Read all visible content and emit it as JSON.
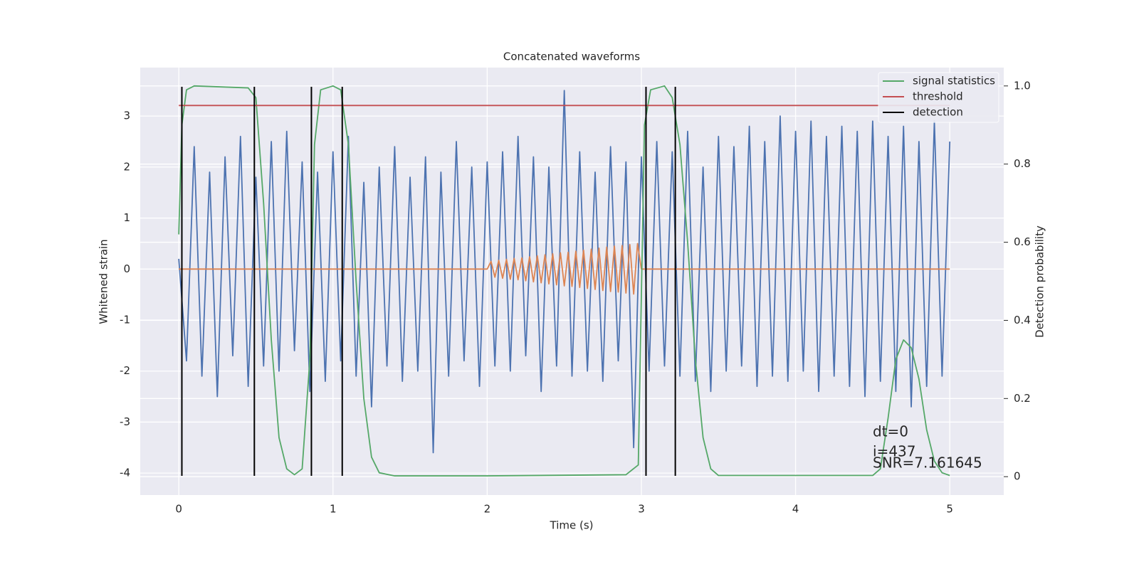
{
  "chart_data": {
    "type": "line",
    "title": "Concatenated waveforms",
    "xlabel": "Time (s)",
    "ylabel": "Whitened strain",
    "y2label": "Detection probability",
    "xlim": [
      -0.25,
      5.35
    ],
    "ylim": [
      -4.43,
      3.95
    ],
    "y2lim": [
      -0.047,
      1.047
    ],
    "xticks": [
      0,
      1,
      2,
      3,
      4,
      5
    ],
    "yticks": [
      -4,
      -3,
      -2,
      -1,
      0,
      1,
      2,
      3
    ],
    "y2ticks": [
      0.0,
      0.2,
      0.4,
      0.6,
      0.8,
      {
        "value": 1.0,
        "label": "1.0"
      }
    ],
    "grid": true,
    "legend": "upper right",
    "annotations": [
      "dt=0",
      "i=437",
      "SNR=7.161645"
    ],
    "series": [
      {
        "color": "#4c72b0",
        "x": [
          0,
          0.05,
          0.1,
          0.15,
          0.2,
          0.25,
          0.3,
          0.35,
          0.4,
          0.45,
          0.5,
          0.55,
          0.6,
          0.65,
          0.7,
          0.75,
          0.8,
          0.85,
          0.9,
          0.95,
          1,
          1.05,
          1.1,
          1.15,
          1.2,
          1.25,
          1.3,
          1.35,
          1.4,
          1.45,
          1.5,
          1.55,
          1.6,
          1.65,
          1.7,
          1.75,
          1.8,
          1.85,
          1.9,
          1.95,
          2,
          2.05,
          2.1,
          2.15,
          2.2,
          2.25,
          2.3,
          2.35,
          2.4,
          2.45,
          2.5,
          2.55,
          2.6,
          2.65,
          2.7,
          2.75,
          2.8,
          2.85,
          2.9,
          2.95,
          3,
          3.05,
          3.1,
          3.15,
          3.2,
          3.25,
          3.3,
          3.35,
          3.4,
          3.45,
          3.5,
          3.55,
          3.6,
          3.65,
          3.7,
          3.75,
          3.8,
          3.85,
          3.9,
          3.95,
          4,
          4.05,
          4.1,
          4.15,
          4.2,
          4.25,
          4.3,
          4.35,
          4.4,
          4.45,
          4.5,
          4.55,
          4.6,
          4.65,
          4.7,
          4.75,
          4.8,
          4.85,
          4.9,
          4.95,
          5
        ],
        "values": [
          0.2,
          -1.8,
          2.4,
          -2.1,
          1.9,
          -2.5,
          2.2,
          -1.7,
          2.6,
          -2.3,
          1.8,
          -1.9,
          2.5,
          -2.0,
          2.7,
          -1.6,
          2.1,
          -2.4,
          1.9,
          -2.2,
          2.3,
          -1.8,
          2.6,
          -2.1,
          1.7,
          -2.7,
          2.0,
          -1.9,
          2.4,
          -2.2,
          1.8,
          -2.0,
          2.2,
          -3.6,
          1.9,
          -2.1,
          2.5,
          -1.8,
          2.0,
          -2.3,
          2.1,
          -1.9,
          2.3,
          -2.0,
          2.6,
          -1.7,
          2.2,
          -2.4,
          2.0,
          -1.9,
          3.5,
          -2.1,
          2.3,
          -2.0,
          1.9,
          -2.2,
          2.4,
          -1.8,
          2.1,
          -3.5,
          2.2,
          -2.0,
          2.5,
          -1.9,
          2.3,
          -2.1,
          2.7,
          -2.2,
          2.0,
          -2.4,
          2.6,
          -2.0,
          2.4,
          -1.9,
          2.8,
          -2.3,
          2.5,
          -2.1,
          3.0,
          -2.2,
          2.7,
          -2.0,
          2.9,
          -2.4,
          2.6,
          -2.1,
          2.8,
          -2.3,
          2.7,
          -2.5,
          2.9,
          -2.2,
          2.6,
          -2.4,
          2.8,
          -2.7,
          2.5,
          -2.3,
          2.9,
          -2.1,
          2.5
        ]
      },
      {
        "color": "#dd8452",
        "x": [
          0,
          2,
          2.025,
          2.05,
          2.075,
          2.1,
          2.125,
          2.15,
          2.175,
          2.2,
          2.225,
          2.25,
          2.275,
          2.3,
          2.325,
          2.35,
          2.375,
          2.4,
          2.425,
          2.45,
          2.475,
          2.5,
          2.525,
          2.55,
          2.575,
          2.6,
          2.625,
          2.65,
          2.675,
          2.7,
          2.725,
          2.75,
          2.775,
          2.8,
          2.825,
          2.85,
          2.875,
          2.9,
          2.925,
          2.95,
          2.975,
          3,
          5
        ],
        "values": [
          0,
          0,
          0.15,
          -0.16,
          0.17,
          -0.18,
          0.19,
          -0.2,
          0.21,
          -0.21,
          0.22,
          -0.23,
          0.24,
          -0.25,
          0.26,
          -0.27,
          0.28,
          -0.29,
          0.3,
          -0.31,
          0.32,
          -0.33,
          0.33,
          -0.34,
          0.35,
          -0.36,
          0.37,
          -0.38,
          0.39,
          -0.4,
          0.41,
          -0.42,
          0.43,
          -0.44,
          0.45,
          -0.45,
          0.46,
          -0.47,
          0.48,
          -0.49,
          0.5,
          0,
          0
        ]
      },
      {
        "name": "signal statistics",
        "color": "#55a868",
        "axis": "y2",
        "x": [
          0,
          0.02,
          0.05,
          0.1,
          0.45,
          0.5,
          0.55,
          0.6,
          0.65,
          0.7,
          0.75,
          0.8,
          0.85,
          0.88,
          0.92,
          1.0,
          1.05,
          1.1,
          1.15,
          1.2,
          1.25,
          1.3,
          1.4,
          2.0,
          2.9,
          2.98,
          3.02,
          3.06,
          3.15,
          3.2,
          3.25,
          3.3,
          3.35,
          3.4,
          3.45,
          3.5,
          4.5,
          4.55,
          4.6,
          4.65,
          4.7,
          4.75,
          4.8,
          4.85,
          4.9,
          4.95,
          5.0
        ],
        "values": [
          0.62,
          0.9,
          0.99,
          1.0,
          0.995,
          0.97,
          0.7,
          0.35,
          0.1,
          0.02,
          0.005,
          0.02,
          0.3,
          0.85,
          0.99,
          1.0,
          0.99,
          0.85,
          0.5,
          0.2,
          0.05,
          0.01,
          0.002,
          0.002,
          0.005,
          0.03,
          0.9,
          0.99,
          1.0,
          0.97,
          0.85,
          0.6,
          0.3,
          0.1,
          0.02,
          0.003,
          0.003,
          0.02,
          0.15,
          0.3,
          0.35,
          0.33,
          0.25,
          0.12,
          0.04,
          0.01,
          0.003
        ]
      },
      {
        "name": "threshold",
        "color": "#c44e52",
        "axis": "y2",
        "x": [
          0,
          5
        ],
        "values": [
          0.95,
          0.95
        ]
      },
      {
        "name": "detection",
        "color": "#000000",
        "axis": "x",
        "values": [
          0.02,
          0.49,
          0.86,
          1.06,
          3.03,
          3.22
        ]
      }
    ]
  }
}
